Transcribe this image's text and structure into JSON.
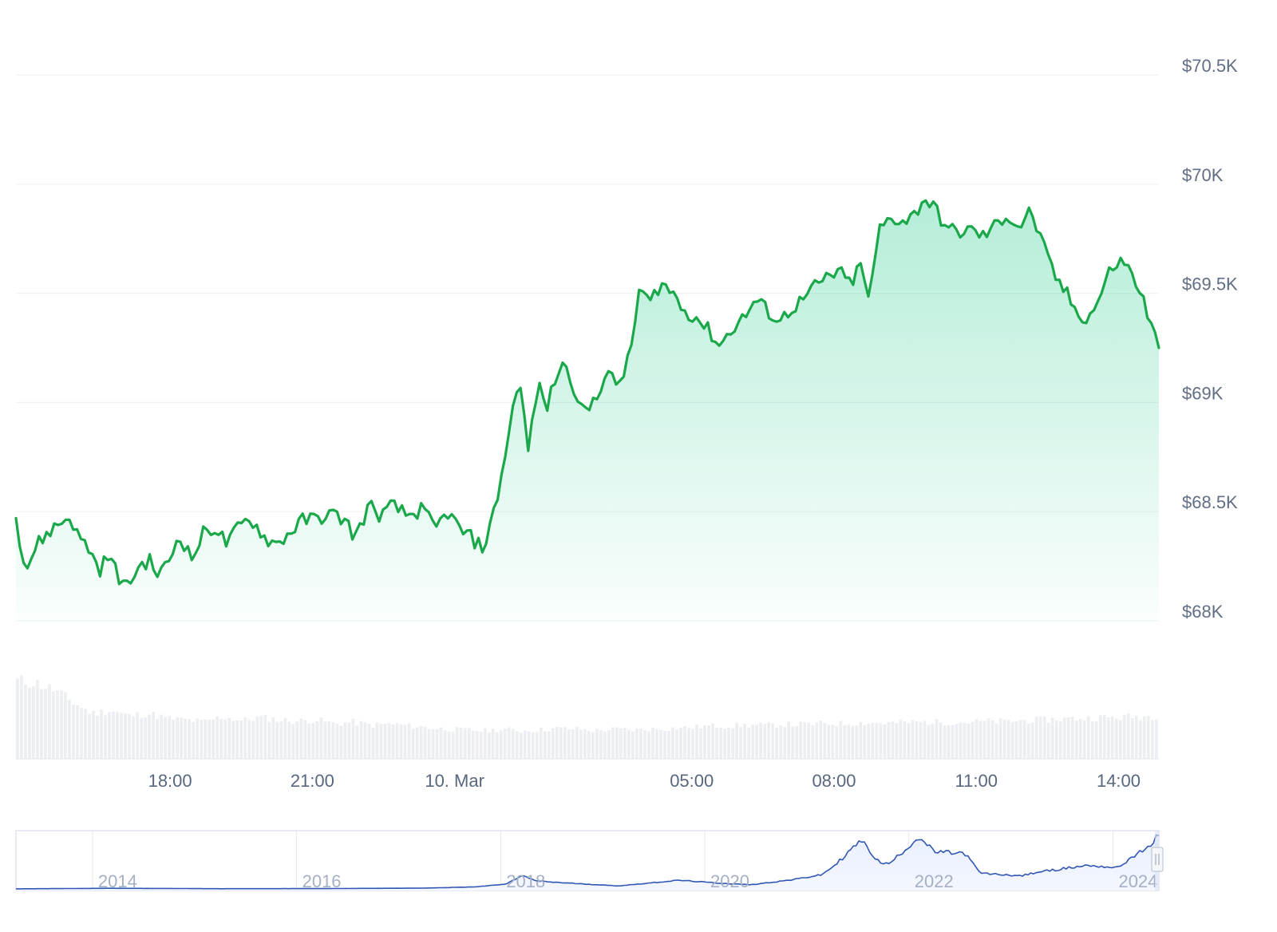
{
  "chart_data": [
    {
      "type": "area",
      "y_tick_labels": [
        "$68K",
        "$68.5K",
        "$69K",
        "$69.5K",
        "$70K",
        "$70.5K"
      ],
      "y_tick_values": [
        68000,
        68500,
        69000,
        69500,
        70000,
        70500
      ],
      "x_tick_labels": [
        "18:00",
        "21:00",
        "10. Mar",
        "05:00",
        "08:00",
        "11:00",
        "14:00"
      ],
      "x_tick_hours": [
        18,
        21,
        24,
        29,
        32,
        35,
        38
      ],
      "x_range_hours": [
        14.75,
        38.85
      ],
      "ylim": [
        68000,
        70500
      ],
      "grid": true,
      "colors": {
        "line": "#16c784",
        "stroke": "#1aa84a",
        "fill_top": "#16c784",
        "grid": "#eff2f5"
      },
      "price_points": [
        [
          14.75,
          68470
        ],
        [
          14.95,
          68230
        ],
        [
          15.2,
          68350
        ],
        [
          15.5,
          68420
        ],
        [
          15.7,
          68450
        ],
        [
          15.9,
          68480
        ],
        [
          16.05,
          68390
        ],
        [
          16.3,
          68330
        ],
        [
          16.5,
          68230
        ],
        [
          16.7,
          68300
        ],
        [
          16.95,
          68190
        ],
        [
          17.1,
          68150
        ],
        [
          17.3,
          68240
        ],
        [
          17.55,
          68280
        ],
        [
          17.75,
          68210
        ],
        [
          17.95,
          68260
        ],
        [
          18.2,
          68400
        ],
        [
          18.45,
          68280
        ],
        [
          18.7,
          68400
        ],
        [
          18.95,
          68430
        ],
        [
          19.2,
          68350
        ],
        [
          19.45,
          68430
        ],
        [
          19.7,
          68470
        ],
        [
          20.0,
          68380
        ],
        [
          20.25,
          68350
        ],
        [
          20.5,
          68400
        ],
        [
          20.8,
          68460
        ],
        [
          21.1,
          68470
        ],
        [
          21.4,
          68490
        ],
        [
          21.7,
          68460
        ],
        [
          21.9,
          68380
        ],
        [
          22.2,
          68530
        ],
        [
          22.45,
          68480
        ],
        [
          22.7,
          68530
        ],
        [
          23.0,
          68480
        ],
        [
          23.3,
          68510
        ],
        [
          23.6,
          68420
        ],
        [
          23.85,
          68500
        ],
        [
          24.1,
          68420
        ],
        [
          24.35,
          68380
        ],
        [
          24.6,
          68330
        ],
        [
          24.85,
          68510
        ],
        [
          25.1,
          68800
        ],
        [
          25.35,
          69130
        ],
        [
          25.55,
          68780
        ],
        [
          25.75,
          69080
        ],
        [
          25.95,
          68980
        ],
        [
          26.15,
          69130
        ],
        [
          26.35,
          69180
        ],
        [
          26.55,
          69050
        ],
        [
          26.75,
          68940
        ],
        [
          26.95,
          69020
        ],
        [
          27.2,
          69130
        ],
        [
          27.45,
          69080
        ],
        [
          27.7,
          69210
        ],
        [
          27.9,
          69530
        ],
        [
          28.1,
          69450
        ],
        [
          28.35,
          69550
        ],
        [
          28.6,
          69500
        ],
        [
          28.85,
          69420
        ],
        [
          29.1,
          69390
        ],
        [
          29.35,
          69330
        ],
        [
          29.6,
          69260
        ],
        [
          29.85,
          69340
        ],
        [
          30.1,
          69390
        ],
        [
          30.35,
          69470
        ],
        [
          30.6,
          69420
        ],
        [
          30.85,
          69370
        ],
        [
          31.1,
          69430
        ],
        [
          31.35,
          69470
        ],
        [
          31.6,
          69530
        ],
        [
          31.85,
          69570
        ],
        [
          32.1,
          69600
        ],
        [
          32.35,
          69540
        ],
        [
          32.55,
          69630
        ],
        [
          32.75,
          69470
        ],
        [
          32.95,
          69790
        ],
        [
          33.2,
          69850
        ],
        [
          33.45,
          69830
        ],
        [
          33.7,
          69860
        ],
        [
          33.9,
          69940
        ],
        [
          34.15,
          69880
        ],
        [
          34.4,
          69790
        ],
        [
          34.65,
          69780
        ],
        [
          34.9,
          69790
        ],
        [
          35.15,
          69760
        ],
        [
          35.4,
          69810
        ],
        [
          35.65,
          69860
        ],
        [
          35.9,
          69800
        ],
        [
          36.15,
          69880
        ],
        [
          36.4,
          69720
        ],
        [
          36.65,
          69580
        ],
        [
          36.9,
          69500
        ],
        [
          37.1,
          69420
        ],
        [
          37.35,
          69380
        ],
        [
          37.6,
          69480
        ],
        [
          37.85,
          69620
        ],
        [
          38.1,
          69650
        ],
        [
          38.35,
          69560
        ],
        [
          38.55,
          69450
        ],
        [
          38.7,
          69340
        ],
        [
          38.85,
          69250
        ]
      ],
      "volume_profile": [
        1.0,
        0.97,
        0.88,
        0.72,
        0.58,
        0.62,
        0.55,
        0.58,
        0.52,
        0.5,
        0.47,
        0.54,
        0.49,
        0.53,
        0.5,
        0.48,
        0.5,
        0.45,
        0.47,
        0.43,
        0.45,
        0.42,
        0.4,
        0.38,
        0.37,
        0.36,
        0.38,
        0.36,
        0.37,
        0.39,
        0.38,
        0.36,
        0.38,
        0.37,
        0.38,
        0.39,
        0.4,
        0.42,
        0.42,
        0.43,
        0.43,
        0.44,
        0.44,
        0.45,
        0.45,
        0.46,
        0.46,
        0.46,
        0.47,
        0.47,
        0.47,
        0.47,
        0.48,
        0.48,
        0.49,
        0.5,
        0.51,
        0.52,
        0.53,
        0.53,
        0.54,
        0.55
      ]
    },
    {
      "type": "line",
      "tick_labels": [
        "2014",
        "2016",
        "2018",
        "2020",
        "2022",
        "2024"
      ],
      "tick_years": [
        2013.75,
        2015.75,
        2017.75,
        2019.75,
        2021.75,
        2023.75
      ],
      "x_range_years": [
        2013.0,
        2024.2
      ],
      "colors": {
        "line": "#3157b5",
        "fill": "#e9efff"
      },
      "price_history": [
        [
          2013.0,
          100
        ],
        [
          2013.9,
          800
        ],
        [
          2014.5,
          600
        ],
        [
          2015.0,
          250
        ],
        [
          2016.0,
          430
        ],
        [
          2017.0,
          1000
        ],
        [
          2017.5,
          2600
        ],
        [
          2017.8,
          6000
        ],
        [
          2017.96,
          17000
        ],
        [
          2018.1,
          10000
        ],
        [
          2018.4,
          7500
        ],
        [
          2018.9,
          3800
        ],
        [
          2019.5,
          11000
        ],
        [
          2019.9,
          7200
        ],
        [
          2020.2,
          5300
        ],
        [
          2020.6,
          11500
        ],
        [
          2020.9,
          18000
        ],
        [
          2021.05,
          33000
        ],
        [
          2021.28,
          62000
        ],
        [
          2021.45,
          35000
        ],
        [
          2021.55,
          31000
        ],
        [
          2021.85,
          66000
        ],
        [
          2022.0,
          47000
        ],
        [
          2022.3,
          45000
        ],
        [
          2022.45,
          20000
        ],
        [
          2022.85,
          16500
        ],
        [
          2023.0,
          21000
        ],
        [
          2023.5,
          30000
        ],
        [
          2023.8,
          27000
        ],
        [
          2023.95,
          42000
        ],
        [
          2024.1,
          52000
        ],
        [
          2024.19,
          69000
        ]
      ]
    }
  ]
}
